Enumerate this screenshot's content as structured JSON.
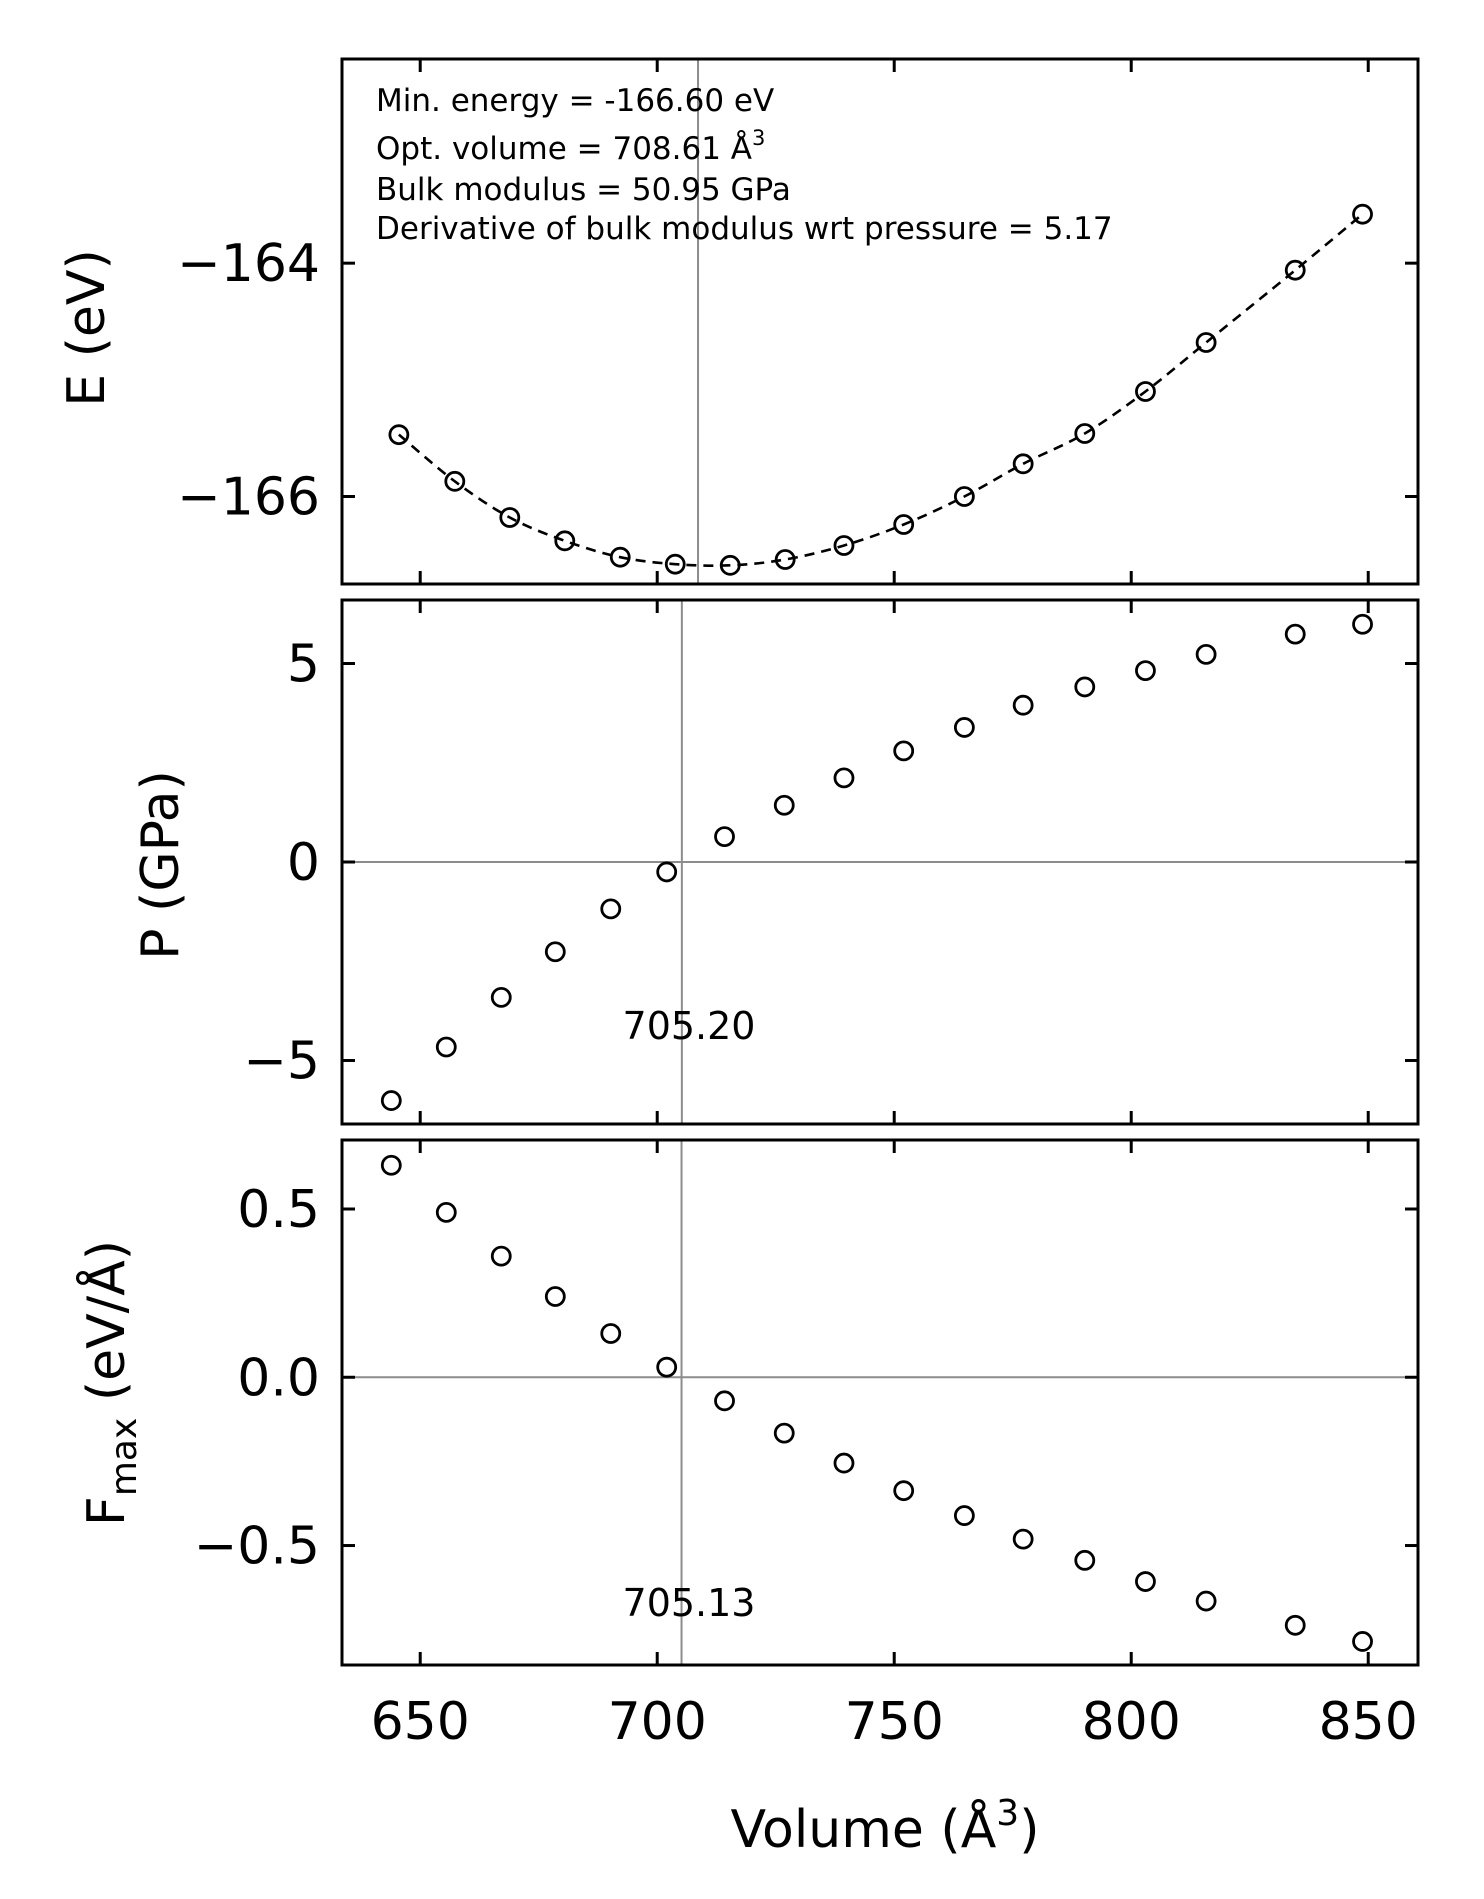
{
  "chart_data": [
    {
      "type": "scatter",
      "panel": "energy",
      "ylabel": "E (eV)",
      "ylim": [
        -166.75,
        -162.25
      ],
      "yticks": [
        -164,
        -166
      ],
      "ytick_labels": [
        "−164",
        "−166"
      ],
      "xlim": [
        633.5,
        860.5
      ],
      "x": [
        645.5,
        657.3,
        668.9,
        680.5,
        692.2,
        703.8,
        715.4,
        727.0,
        739.4,
        752.0,
        764.8,
        777.2,
        790.2,
        803.0,
        815.8,
        834.6,
        848.8
      ],
      "y": [
        -165.47,
        -165.87,
        -166.18,
        -166.38,
        -166.52,
        -166.58,
        -166.59,
        -166.54,
        -166.42,
        -166.24,
        -166.0,
        -165.72,
        -165.46,
        -165.1,
        -164.68,
        -164.06,
        -163.58
      ],
      "fit": "dashed Birch–Murnaghan curve",
      "vline_x": 708.61,
      "annotations": [
        "Min. energy = -166.60 eV",
        "Opt. volume = 708.61 Å",
        "Bulk modulus = 50.95 GPa",
        "Derivative of bulk modulus wrt pressure = 5.17"
      ],
      "annotation_superscript": "3"
    },
    {
      "type": "scatter",
      "panel": "pressure",
      "ylabel": "P (GPa)",
      "ylim": [
        -6.6,
        6.6
      ],
      "yticks": [
        5,
        0,
        -5
      ],
      "ytick_labels": [
        "5",
        "0",
        "−5"
      ],
      "xlim": [
        633.5,
        860.5
      ],
      "x": [
        643.9,
        655.5,
        667.1,
        678.5,
        690.2,
        702.0,
        714.2,
        726.8,
        739.4,
        752.0,
        764.8,
        777.2,
        790.2,
        803.0,
        815.8,
        834.6,
        848.8
      ],
      "y": [
        -6.01,
        -4.66,
        -3.41,
        -2.26,
        -1.18,
        -0.25,
        0.64,
        1.43,
        2.12,
        2.8,
        3.39,
        3.95,
        4.41,
        4.82,
        5.23,
        5.74,
        5.99
      ],
      "hline_y": 0,
      "vline_x": 705.2,
      "crossing_label": "705.20"
    },
    {
      "type": "scatter",
      "panel": "force",
      "ylabel": "F",
      "ylabel_subscript": "max",
      "ylabel_suffix": " (eV/Å)",
      "ylim": [
        -0.855,
        0.705
      ],
      "yticks": [
        0.5,
        0.0,
        -0.5
      ],
      "ytick_labels": [
        "0.5",
        "0.0",
        "−0.5"
      ],
      "xlim": [
        633.5,
        860.5
      ],
      "x": [
        643.9,
        655.5,
        667.1,
        678.5,
        690.2,
        702.0,
        714.2,
        726.8,
        739.4,
        752.0,
        764.8,
        777.2,
        790.2,
        803.0,
        815.8,
        834.6,
        848.8
      ],
      "y": [
        0.63,
        0.49,
        0.36,
        0.24,
        0.13,
        0.03,
        -0.07,
        -0.166,
        -0.255,
        -0.337,
        -0.411,
        -0.481,
        -0.544,
        -0.607,
        -0.665,
        -0.737,
        -0.785
      ],
      "hline_y": 0,
      "vline_x": 705.13,
      "crossing_label": "705.13"
    }
  ],
  "xaxis": {
    "xlabel": "Volume (Å",
    "xlabel_superscript": "3",
    "xlabel_suffix": ")",
    "xticks": [
      650,
      700,
      750,
      800,
      850
    ],
    "xtick_labels": [
      "650",
      "700",
      "750",
      "800",
      "850"
    ]
  }
}
